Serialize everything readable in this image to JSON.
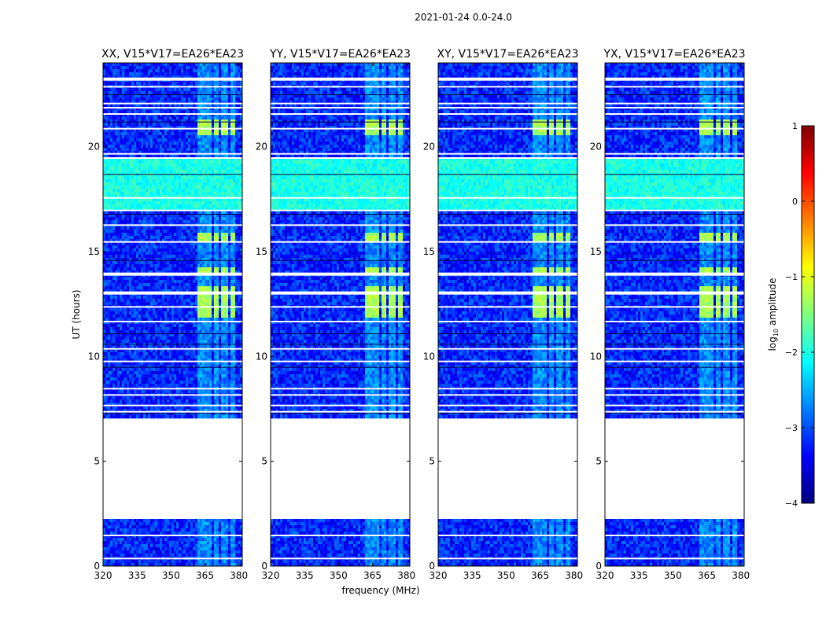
{
  "chart_data": {
    "type": "heatmap",
    "suptitle": "2021-01-24 0.0-24.0",
    "xlabel": "frequency (MHz)",
    "ylabel": "UT (hours)",
    "xlim": [
      320,
      381.5
    ],
    "ylim": [
      0,
      24
    ],
    "xticks": [
      320,
      335,
      350,
      365,
      380
    ],
    "xtick_labels": [
      "320",
      "335",
      "350",
      "365",
      "380"
    ],
    "yticks": [
      0,
      5,
      10,
      15,
      20
    ],
    "ytick_labels": [
      "0",
      "5",
      "10",
      "15",
      "20"
    ],
    "panels": [
      {
        "title": "XX, V15*V17=EA26*EA23"
      },
      {
        "title": "YY, V15*V17=EA26*EA23"
      },
      {
        "title": "XY, V15*V17=EA26*EA23"
      },
      {
        "title": "YX, V15*V17=EA26*EA23"
      }
    ],
    "colorbar": {
      "label": "log10 amplitude",
      "label_main": "log",
      "label_sub": "10",
      "label_rest": " amplitude",
      "range": [
        -4,
        1
      ],
      "ticks": [
        1,
        0,
        -1,
        -2,
        -3,
        -4
      ],
      "tick_labels": [
        "1",
        "0",
        "−1",
        "−2",
        "−3",
        "−4"
      ],
      "colormap": "jet",
      "colors": [
        "#00007f",
        "#0000ff",
        "#007fff",
        "#00ffff",
        "#7fff7f",
        "#ffff00",
        "#ff7f00",
        "#ff0000",
        "#7f0000"
      ]
    },
    "data_regions_ut": [
      [
        0,
        2.25
      ],
      [
        7.1,
        24.0
      ]
    ],
    "flagged_gap_ut": [
      2.25,
      7.1
    ],
    "rfi_band_mhz": [
      361,
      379
    ],
    "elevated_band_ut": [
      17.1,
      19.6
    ],
    "bright_rfi_ut": [
      [
        12.0,
        13.4
      ],
      [
        14.0,
        14.3
      ],
      [
        15.5,
        16.0
      ],
      [
        20.6,
        21.4
      ]
    ],
    "noise_level_log10": -3.2,
    "elevated_level_log10": -2.0,
    "rfi_level_log10": -1.3
  }
}
